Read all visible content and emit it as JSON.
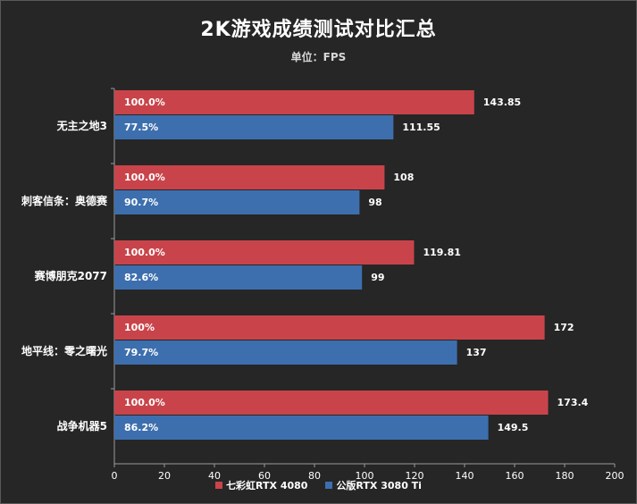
{
  "chart_data": {
    "type": "bar",
    "orientation": "horizontal",
    "title": "2K游戏成绩测试对比汇总",
    "subtitle": "单位：FPS",
    "categories": [
      "无主之地3",
      "刺客信条：奥德赛",
      "赛博朋克2077",
      "地平线：零之曙光",
      "战争机器5"
    ],
    "series": [
      {
        "name": "七彩虹RTX 4080",
        "color": "#c9444a",
        "values": [
          143.85,
          108,
          119.81,
          172,
          173.4
        ],
        "value_labels": [
          "143.85",
          "108",
          "119.81",
          "172",
          "173.4"
        ],
        "percent_labels": [
          "100.0%",
          "100.0%",
          "100.0%",
          "100%",
          "100.0%"
        ]
      },
      {
        "name": "公版RTX 3080 Ti",
        "color": "#3d6fae",
        "values": [
          111.55,
          98,
          99,
          137,
          149.5
        ],
        "value_labels": [
          "111.55",
          "98",
          "99",
          "137",
          "149.5"
        ],
        "percent_labels": [
          "77.5%",
          "90.7%",
          "82.6%",
          "79.7%",
          "86.2%"
        ]
      }
    ],
    "xlim": [
      0,
      200
    ],
    "xticks": [
      "0",
      "20",
      "40",
      "60",
      "80",
      "100",
      "120",
      "140",
      "160",
      "180",
      "200"
    ],
    "grid": false,
    "legend_position": "bottom"
  }
}
